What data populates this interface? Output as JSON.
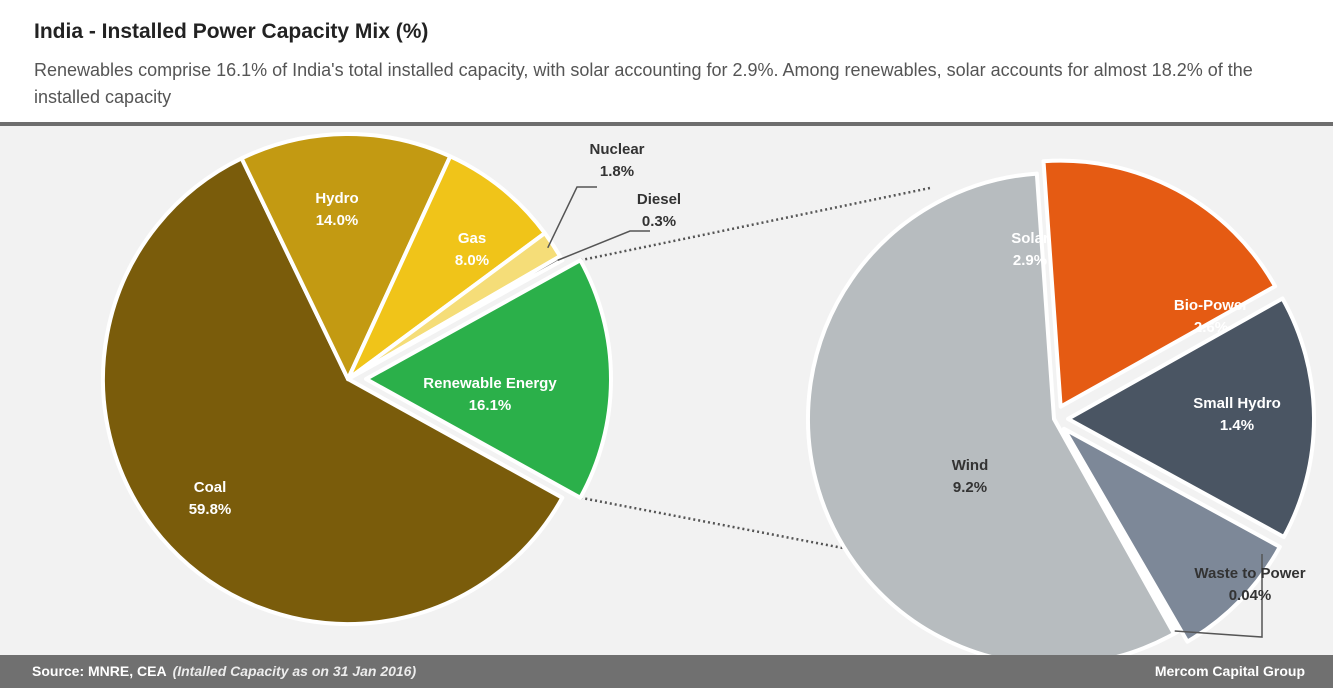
{
  "title": "India - Installed Power Capacity Mix (%)",
  "subtitle": "Renewables comprise 16.1% of India's total installed capacity, with solar accounting for 2.9%. Among renewables, solar accounts for almost 18.2% of the installed capacity",
  "footer": {
    "source": "Source: MNRE, CEA",
    "note": "(Intalled Capacity as on 31 Jan 2016)",
    "brand": "Mercom Capital Group"
  },
  "chart_data": [
    {
      "type": "pie",
      "slices": [
        {
          "label": "Renewable Energy",
          "value": 16.1,
          "value_text": "16.1%",
          "color": "#2bb04a",
          "exploded": true
        },
        {
          "label": "Coal",
          "value": 59.8,
          "value_text": "59.8%",
          "color": "#7a5c0b"
        },
        {
          "label": "Hydro",
          "value": 14.0,
          "value_text": "14.0%",
          "color": "#c39a12"
        },
        {
          "label": "Gas",
          "value": 8.0,
          "value_text": "8.0%",
          "color": "#f0c419"
        },
        {
          "label": "Nuclear",
          "value": 1.8,
          "value_text": "1.8%",
          "color": "#f5dd78"
        },
        {
          "label": "Diesel",
          "value": 0.3,
          "value_text": "0.3%",
          "color": "#4d4d4d"
        }
      ]
    },
    {
      "type": "pie",
      "slices": [
        {
          "label": "Solar",
          "value": 2.9,
          "value_text": "2.9%",
          "color": "#e55b13",
          "exploded": true
        },
        {
          "label": "Bio-Power",
          "value": 2.6,
          "value_text": "2.6%",
          "color": "#4a5563",
          "exploded": true
        },
        {
          "label": "Small Hydro",
          "value": 1.4,
          "value_text": "1.4%",
          "color": "#7d8898",
          "exploded": true
        },
        {
          "label": "Waste to Power",
          "value": 0.04,
          "value_text": "0.04%",
          "color": "#2bb04a"
        },
        {
          "label": "Wind",
          "value": 9.2,
          "value_text": "9.2%",
          "color": "#b7bcbf"
        }
      ]
    }
  ]
}
